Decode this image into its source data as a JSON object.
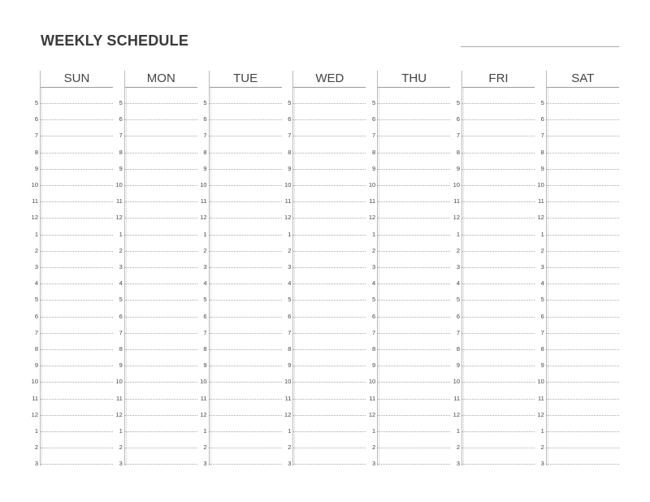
{
  "title": "WEEKLY SCHEDULE",
  "days": [
    "SUN",
    "MON",
    "TUE",
    "WED",
    "THU",
    "FRI",
    "SAT"
  ],
  "hours": [
    "5",
    "6",
    "7",
    "8",
    "9",
    "10",
    "11",
    "12",
    "1",
    "2",
    "3",
    "4",
    "5",
    "6",
    "7",
    "8",
    "9",
    "10",
    "11",
    "12",
    "1",
    "2",
    "3"
  ]
}
